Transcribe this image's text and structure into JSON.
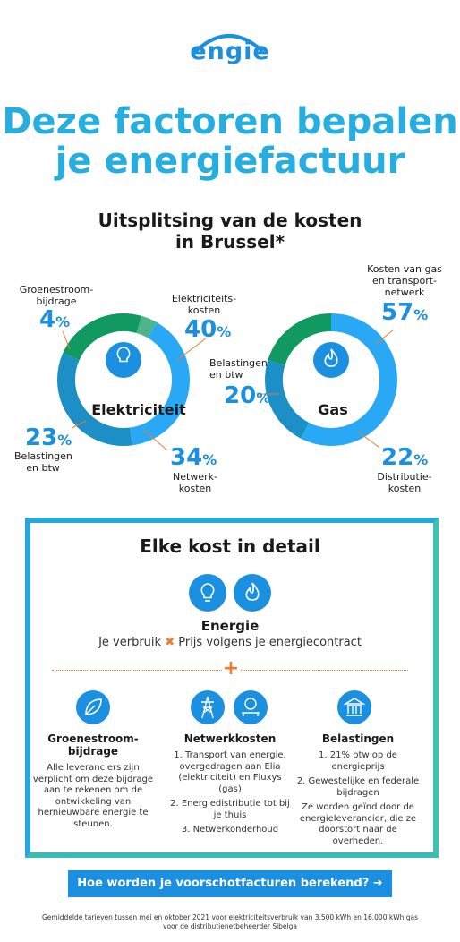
{
  "brand": {
    "logo_text": "engie",
    "color": "#1b8fe0"
  },
  "title": {
    "line1": "Deze factoren bepalen",
    "line2": "je energiefactuur"
  },
  "subtitle": {
    "line1": "Uitsplitsing van de kosten",
    "line2": "in Brussel*"
  },
  "electricity": {
    "name": "Elektriciteit",
    "icon": "lightbulb-icon",
    "slices": [
      {
        "label_lines": [
          "Elektriciteits-",
          "kosten"
        ],
        "pct": "40",
        "value": 40,
        "color": "#29a9f5"
      },
      {
        "label_lines": [
          "Netwerk-",
          "kosten"
        ],
        "pct": "34",
        "value": 34,
        "color": "#1c8fc6"
      },
      {
        "label_lines": [
          "Belastingen",
          "en btw"
        ],
        "pct": "23",
        "value": 23,
        "color": "#109a62"
      },
      {
        "label_lines": [
          "Groenestroom-",
          "bijdrage"
        ],
        "pct": "4",
        "value": 4,
        "color": "#4eb58a"
      }
    ]
  },
  "gas": {
    "name": "Gas",
    "icon": "flame-icon",
    "slices": [
      {
        "label_lines": [
          "Kosten van gas",
          "en transport-",
          "netwerk"
        ],
        "pct": "57",
        "value": 57,
        "color": "#29a9f5"
      },
      {
        "label_lines": [
          "Distributie-",
          "kosten"
        ],
        "pct": "22",
        "value": 22,
        "color": "#1c8fc6"
      },
      {
        "label_lines": [
          "Belastingen",
          "en btw"
        ],
        "pct": "20",
        "value": 20,
        "color": "#109a62"
      }
    ]
  },
  "pct_sign": "%",
  "detail": {
    "title": "Elke kost in detail",
    "energie_title": "Energie",
    "formula_left": "Je verbruik",
    "formula_x": "✖",
    "formula_right": "Prijs volgens je energiecontract",
    "plus": "+",
    "columns": [
      {
        "icon": "leaf-icon",
        "title_lines": [
          "Groenestroom-",
          "bijdrage"
        ],
        "paras": [
          "Alle leveranciers zijn verplicht om deze bijdrage aan te rekenen om de ontwikkeling van hernieuwbare energie te steunen."
        ]
      },
      {
        "icons": [
          "pylon-icon",
          "gas-meter-icon"
        ],
        "title_lines": [
          "Netwerkkosten"
        ],
        "paras": [
          "1. Transport van energie, overgedragen aan Elia (elektriciteit) en Fluxys (gas)",
          "2. Energiedistributie tot bij je thuis",
          "3. Netwerkonderhoud"
        ]
      },
      {
        "icon": "government-building-icon",
        "title_lines": [
          "Belastingen"
        ],
        "paras": [
          "1. 21% btw op de energieprijs",
          "2. Gewestelijke en federale bijdragen",
          "Ze worden geïnd door de energieleverancier, die ze doorstort naar de overheden."
        ]
      }
    ]
  },
  "cta": {
    "label": "Hoe worden je voorschotfacturen berekend?",
    "icon": "arrow-right-circle-icon"
  },
  "footnote": {
    "line1": "Gemiddelde tarieven tussen mei en oktober 2021 voor elektriciteitsverbruik van 3.500 kWh en 16.000 kWh gas",
    "line2": "voor de distributienetbeheerder Sibelga"
  }
}
